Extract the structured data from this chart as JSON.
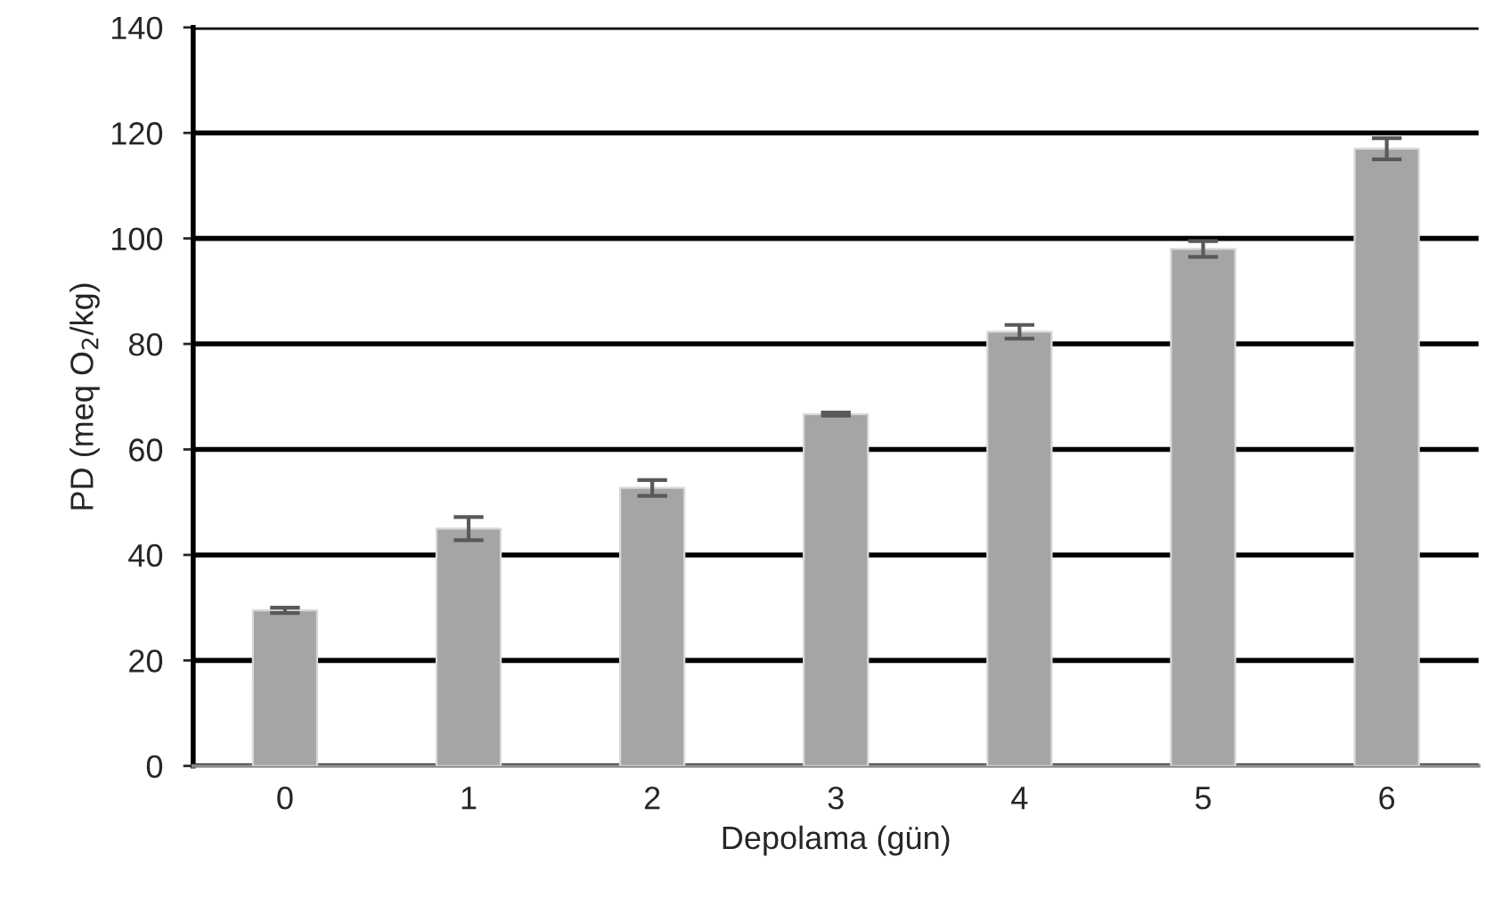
{
  "chart_data": {
    "type": "bar",
    "xlabel": "Depolama (gün)",
    "ylabel": "PD (meq O$_{2}$/kg)",
    "categories": [
      "0",
      "1",
      "2",
      "3",
      "4",
      "5",
      "6"
    ],
    "values": [
      29.5,
      45,
      52.7,
      66.7,
      82.3,
      98,
      117
    ],
    "errors": [
      0.5,
      2.2,
      1.5,
      0.3,
      1.3,
      1.5,
      2
    ],
    "color": "#a5a5a5",
    "ylim": [
      0,
      140
    ],
    "yticks": [
      0,
      20,
      40,
      60,
      80,
      100,
      120,
      140
    ],
    "grid": "y"
  }
}
